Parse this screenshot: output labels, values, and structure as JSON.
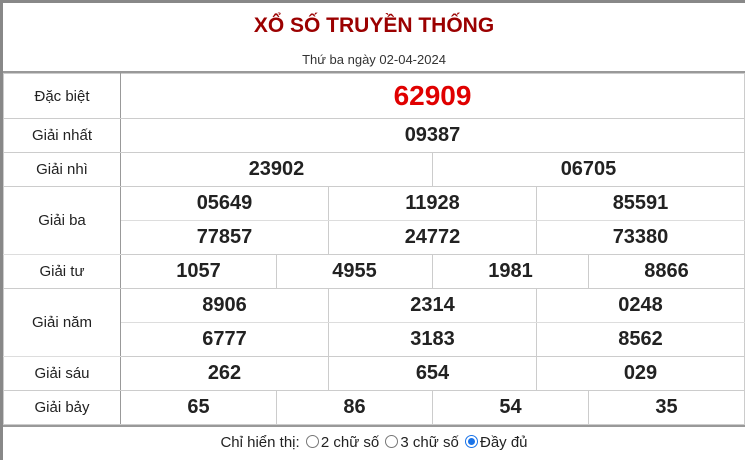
{
  "title": "XỔ SỐ TRUYỀN THỐNG",
  "date": "Thứ ba ngày 02-04-2024",
  "prizes": {
    "db": {
      "label": "Đặc biệt",
      "values": [
        "62909"
      ]
    },
    "g1": {
      "label": "Giải nhất",
      "values": [
        "09387"
      ]
    },
    "g2": {
      "label": "Giải nhì",
      "values": [
        "23902",
        "06705"
      ]
    },
    "g3": {
      "label": "Giải ba",
      "values": [
        "05649",
        "11928",
        "85591",
        "77857",
        "24772",
        "73380"
      ]
    },
    "g4": {
      "label": "Giải tư",
      "values": [
        "1057",
        "4955",
        "1981",
        "8866"
      ]
    },
    "g5": {
      "label": "Giải năm",
      "values": [
        "8906",
        "2314",
        "0248",
        "6777",
        "3183",
        "8562"
      ]
    },
    "g6": {
      "label": "Giải sáu",
      "values": [
        "262",
        "654",
        "029"
      ]
    },
    "g7": {
      "label": "Giải bảy",
      "values": [
        "65",
        "86",
        "54",
        "35"
      ]
    }
  },
  "filter": {
    "label": "Chỉ hiển thị:",
    "options": [
      "2 chữ số",
      "3 chữ số",
      "Đầy đủ"
    ],
    "selected": "Đầy đủ"
  },
  "colors": {
    "title": "#9b0000",
    "special": "#e00000",
    "radio": "#1a73e8"
  }
}
